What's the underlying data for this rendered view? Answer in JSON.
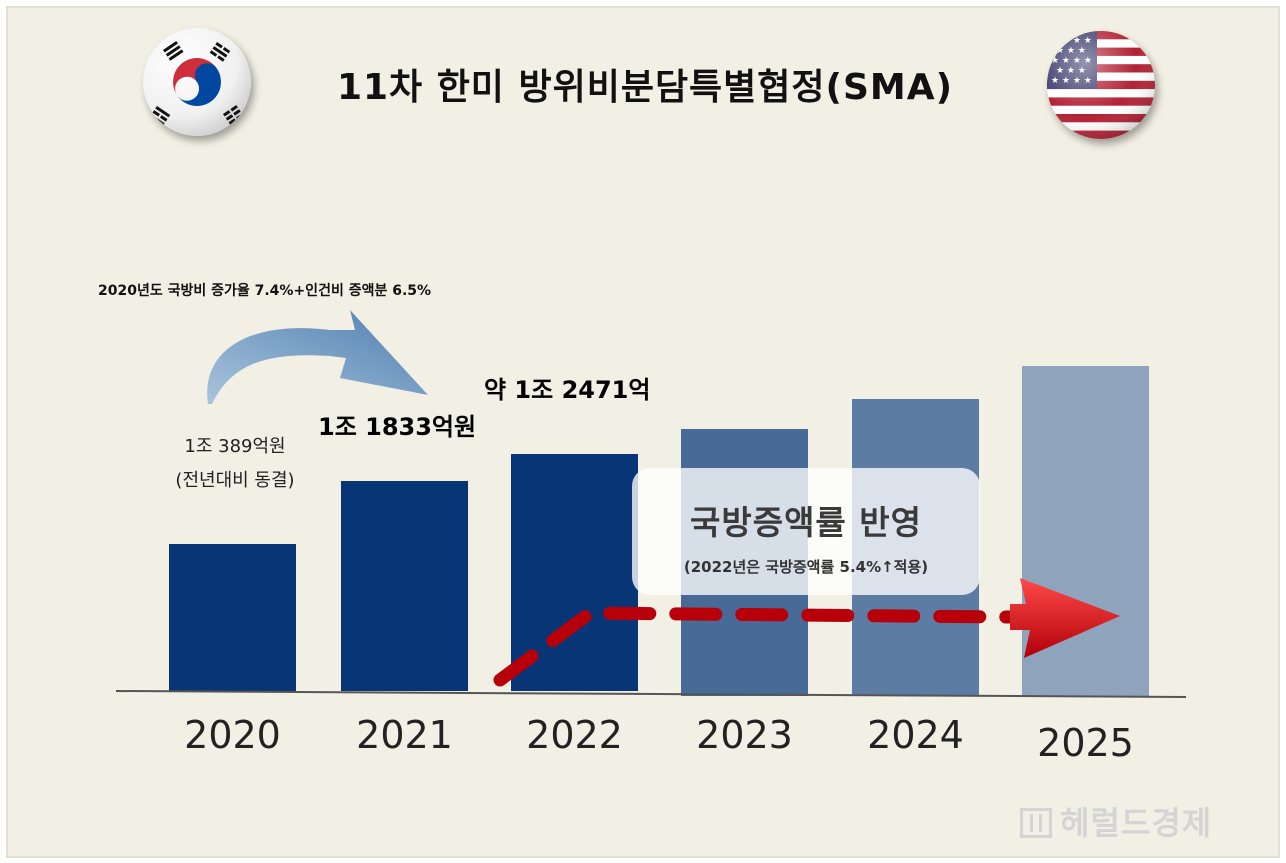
{
  "title": "11차 한미 방위비분담특별협정(SMA)",
  "flags": {
    "left": "south-korea-flag",
    "right": "us-flag"
  },
  "annotations": {
    "top_note": "2020년도 국방비 증가율 7.4%+인건비 증액분 6.5%",
    "bar_2020_line1": "1조 389억원",
    "bar_2020_line2": "(전년대비 동결)",
    "bar_2021": "1조 1833억원",
    "bar_2022": "약 1조 2471억",
    "callout_main": "국방증액률 반영",
    "callout_sub": "(2022년은 국방증액률 5.4%↑적용)"
  },
  "watermark": "헤럴드경제",
  "chart_data": {
    "type": "bar",
    "title": "11차 한미 방위비분담특별협정(SMA)",
    "categories": [
      "2020",
      "2021",
      "2022",
      "2023",
      "2024",
      "2025"
    ],
    "values": [
      10389,
      11833,
      12471,
      13150,
      13850,
      14600
    ],
    "unit": "억원",
    "estimated_values": [
      false,
      false,
      false,
      true,
      true,
      true
    ],
    "colors": [
      "#083575",
      "#083575",
      "#083575",
      "#476b96",
      "#5c7ca4",
      "#8fa3bd"
    ],
    "ylim": [
      0,
      14600
    ],
    "xlabel": "",
    "ylabel": "",
    "grid": false,
    "legend": "none"
  },
  "colors": {
    "background": "#f2efe4",
    "bar_dark": "#083575",
    "trend_arrow": "#c8000a",
    "curved_arrow": "#5a89b8"
  }
}
